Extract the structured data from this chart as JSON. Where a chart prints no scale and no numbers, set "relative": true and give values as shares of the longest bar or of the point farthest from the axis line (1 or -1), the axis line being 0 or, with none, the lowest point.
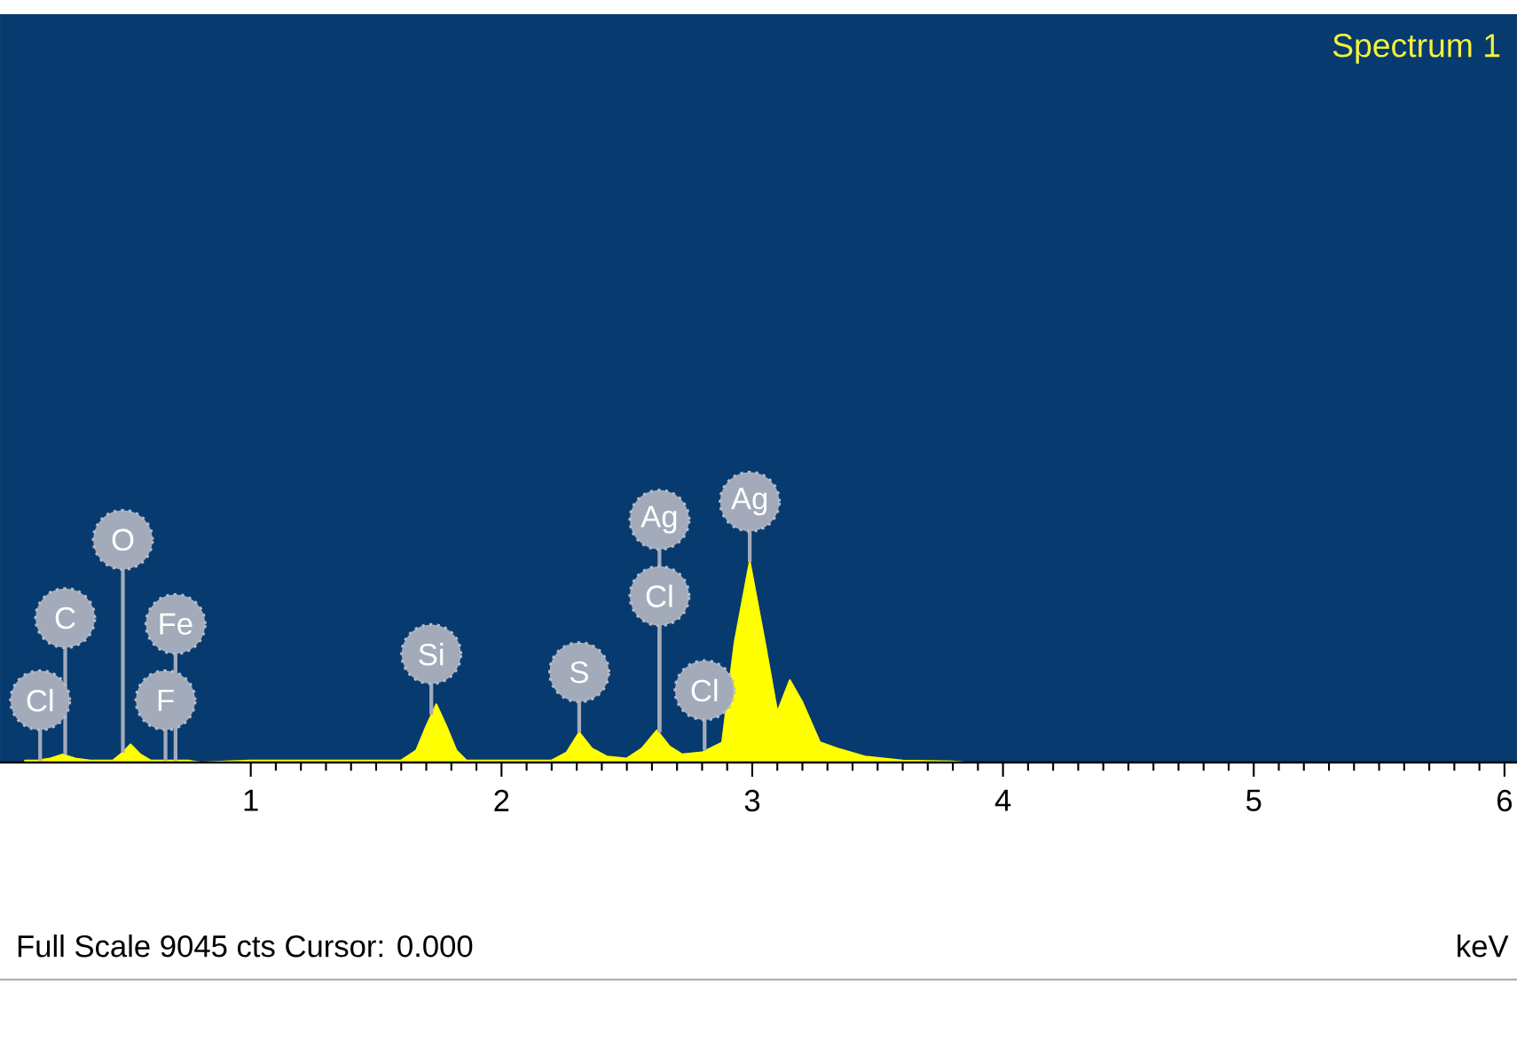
{
  "chart_data": {
    "type": "area",
    "title": "Spectrum 1",
    "xlabel": "keV",
    "relative": true,
    "color": "#ffff00",
    "x": [
      0.1,
      0.15,
      0.2,
      0.25,
      0.3,
      0.36,
      0.45,
      0.49,
      0.52,
      0.56,
      0.6,
      0.7,
      0.75,
      0.8,
      1.0,
      1.6,
      1.66,
      1.7,
      1.74,
      1.78,
      1.82,
      1.86,
      2.2,
      2.26,
      2.31,
      2.36,
      2.42,
      2.5,
      2.56,
      2.62,
      2.67,
      2.72,
      2.8,
      2.88,
      2.93,
      2.99,
      3.05,
      3.1,
      3.15,
      3.2,
      3.27,
      3.34,
      3.45,
      3.6,
      3.8,
      3.85,
      6.05
    ],
    "values": [
      0.01,
      0.01,
      0.02,
      0.04,
      0.02,
      0.01,
      0.01,
      0.05,
      0.09,
      0.04,
      0.01,
      0.01,
      0.01,
      0,
      0.01,
      0.01,
      0.06,
      0.18,
      0.29,
      0.18,
      0.06,
      0.01,
      0.01,
      0.05,
      0.15,
      0.07,
      0.03,
      0.02,
      0.07,
      0.16,
      0.08,
      0.04,
      0.05,
      0.1,
      0.6,
      1,
      0.6,
      0.25,
      0.41,
      0.3,
      0.1,
      0.07,
      0.03,
      0.01,
      0.005,
      0,
      0
    ],
    "xlim": [
      0,
      6.05
    ],
    "xticks": [
      1,
      2,
      3,
      4,
      5,
      6
    ],
    "annotations": [
      {
        "text": "Cl",
        "x": 0.16,
        "y": 0.01
      },
      {
        "text": "F",
        "x": 0.66,
        "y": 0.01
      },
      {
        "text": "C",
        "x": 0.26,
        "y": 0.04
      },
      {
        "text": "Fe",
        "x": 0.7,
        "y": 0.01
      },
      {
        "text": "O",
        "x": 0.49,
        "y": 0.05
      },
      {
        "text": "Si",
        "x": 1.72,
        "y": 0.24
      },
      {
        "text": "S",
        "x": 2.31,
        "y": 0.15
      },
      {
        "text": "Cl",
        "x": 2.81,
        "y": 0.06
      },
      {
        "text": "Cl",
        "x": 2.63,
        "y": 0.15
      },
      {
        "text": "Ag",
        "x": 2.63,
        "y": 0.15
      },
      {
        "text": "Ag",
        "x": 2.99,
        "y": 1
      },
      "Full Scale 9045 cts Cursor: 0.000"
    ]
  }
}
